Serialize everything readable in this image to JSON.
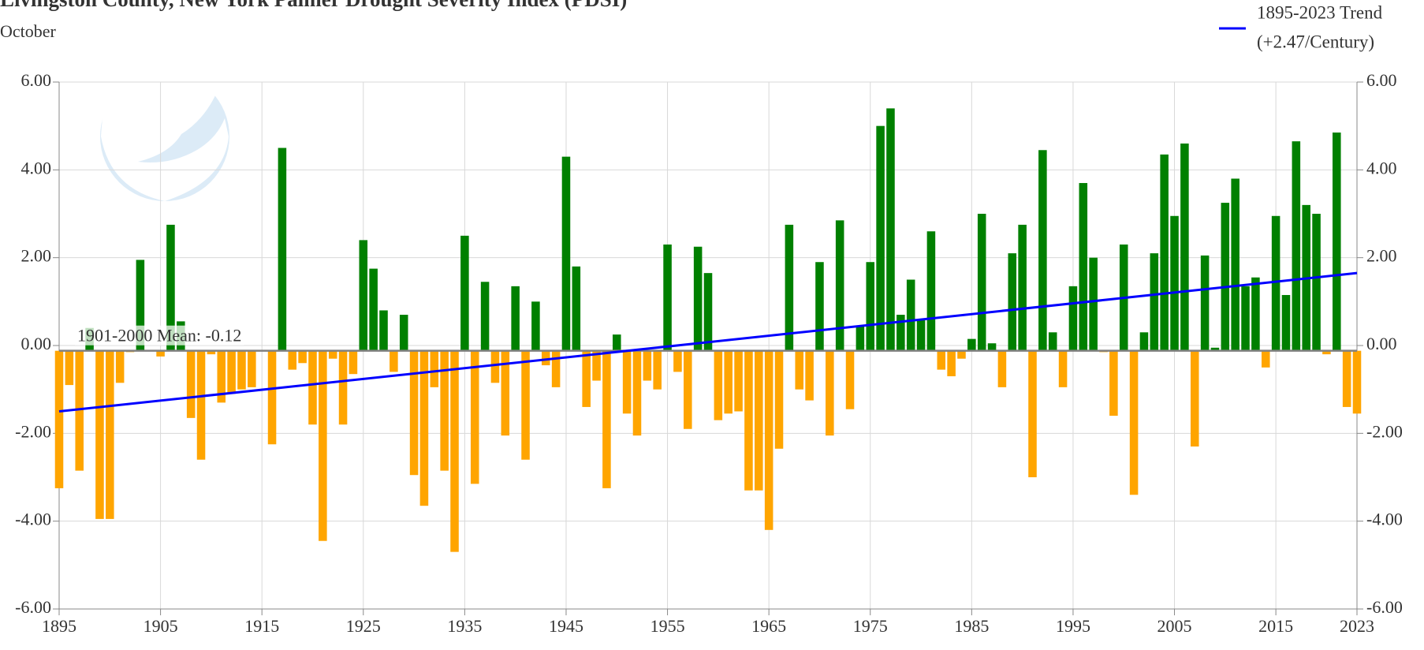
{
  "chart_data": {
    "type": "bar",
    "title": "Livingston County, New York Palmer Drought Severity Index (PDSI)",
    "subtitle": "October",
    "logo_text": "NOAA",
    "mean_label": "1901-2000 Mean: -0.12",
    "mean": -0.12,
    "positive_color": "#008000",
    "negative_color": "#ffa500",
    "x": [
      1895,
      1896,
      1897,
      1898,
      1899,
      1900,
      1901,
      1902,
      1903,
      1904,
      1905,
      1906,
      1907,
      1908,
      1909,
      1910,
      1911,
      1912,
      1913,
      1914,
      1915,
      1916,
      1917,
      1918,
      1919,
      1920,
      1921,
      1922,
      1923,
      1924,
      1925,
      1926,
      1927,
      1928,
      1929,
      1930,
      1931,
      1932,
      1933,
      1934,
      1935,
      1936,
      1937,
      1938,
      1939,
      1940,
      1941,
      1942,
      1943,
      1944,
      1945,
      1946,
      1947,
      1948,
      1949,
      1950,
      1951,
      1952,
      1953,
      1954,
      1955,
      1956,
      1957,
      1958,
      1959,
      1960,
      1961,
      1962,
      1963,
      1964,
      1965,
      1966,
      1967,
      1968,
      1969,
      1970,
      1971,
      1972,
      1973,
      1974,
      1975,
      1976,
      1977,
      1978,
      1979,
      1980,
      1981,
      1982,
      1983,
      1984,
      1985,
      1986,
      1987,
      1988,
      1989,
      1990,
      1991,
      1992,
      1993,
      1994,
      1995,
      1996,
      1997,
      1998,
      1999,
      2000,
      2001,
      2002,
      2003,
      2004,
      2005,
      2006,
      2007,
      2008,
      2009,
      2010,
      2011,
      2012,
      2013,
      2014,
      2015,
      2016,
      2017,
      2018,
      2019,
      2020,
      2021,
      2022,
      2023
    ],
    "values": [
      -3.25,
      -0.9,
      -2.85,
      0.4,
      -3.95,
      -3.95,
      -0.85,
      -0.15,
      1.95,
      -0.1,
      -0.25,
      2.75,
      0.55,
      -1.65,
      -2.6,
      -0.2,
      -1.3,
      -1.1,
      -1.0,
      -0.95,
      -0.1,
      -2.25,
      4.5,
      -0.55,
      -0.4,
      -1.8,
      -4.45,
      -0.3,
      -1.8,
      -0.65,
      2.4,
      1.75,
      0.8,
      -0.6,
      0.7,
      -2.95,
      -3.65,
      -0.95,
      -2.85,
      -4.7,
      2.5,
      -3.15,
      1.45,
      -0.85,
      -2.05,
      1.35,
      -2.6,
      1.0,
      -0.45,
      -0.95,
      4.3,
      1.8,
      -1.4,
      -0.8,
      -3.25,
      0.25,
      -1.55,
      -2.05,
      -0.8,
      -1.0,
      2.3,
      -0.6,
      -1.9,
      2.25,
      1.65,
      -1.7,
      -1.55,
      -1.5,
      -3.3,
      -3.3,
      -4.2,
      -2.35,
      2.75,
      -1.0,
      -1.25,
      1.9,
      -2.05,
      2.85,
      -1.45,
      0.45,
      1.9,
      5.0,
      5.4,
      0.7,
      1.5,
      0.6,
      2.6,
      -0.55,
      -0.7,
      -0.3,
      0.15,
      3.0,
      0.05,
      -0.95,
      2.1,
      2.75,
      -3.0,
      4.45,
      0.3,
      -0.95,
      1.35,
      3.7,
      2.0,
      -0.15,
      -1.6,
      2.3,
      -3.4,
      0.3,
      2.1,
      4.35,
      2.95,
      4.6,
      -2.3,
      2.05,
      -0.05,
      3.25,
      3.8,
      1.35,
      1.55,
      -0.5,
      2.95,
      1.15,
      4.65,
      3.2,
      3.0,
      -0.2,
      4.85,
      -1.4,
      -1.55
    ],
    "trend": {
      "name": "1895-2023 Trend",
      "label": "(+2.47/Century)",
      "color": "#0000ff",
      "x": [
        1895,
        2023
      ],
      "values": [
        -1.5,
        1.65
      ]
    },
    "xlim": [
      1895,
      2023
    ],
    "xticks": [
      1895,
      1905,
      1915,
      1925,
      1935,
      1945,
      1955,
      1965,
      1975,
      1985,
      1995,
      2005,
      2015,
      2023
    ],
    "ylim": [
      -6,
      6
    ],
    "yticks": [
      {
        "value": -6,
        "label": "-6.00"
      },
      {
        "value": -4,
        "label": "-4.00"
      },
      {
        "value": -2,
        "label": "-2.00"
      },
      {
        "value": 0,
        "label": "0.00"
      },
      {
        "value": 2,
        "label": "2.00"
      },
      {
        "value": 4,
        "label": "4.00"
      },
      {
        "value": 6,
        "label": "6.00"
      }
    ],
    "y2lim": [
      -6,
      6
    ],
    "y2ticks": [
      {
        "value": -6,
        "label": "-6.00"
      },
      {
        "value": -4,
        "label": "-4.00"
      },
      {
        "value": -2,
        "label": "-2.00"
      },
      {
        "value": 0,
        "label": "0.00"
      },
      {
        "value": 2,
        "label": "2.00"
      },
      {
        "value": 4,
        "label": "4.00"
      },
      {
        "value": 6,
        "label": "6.00"
      }
    ],
    "grid": true
  }
}
